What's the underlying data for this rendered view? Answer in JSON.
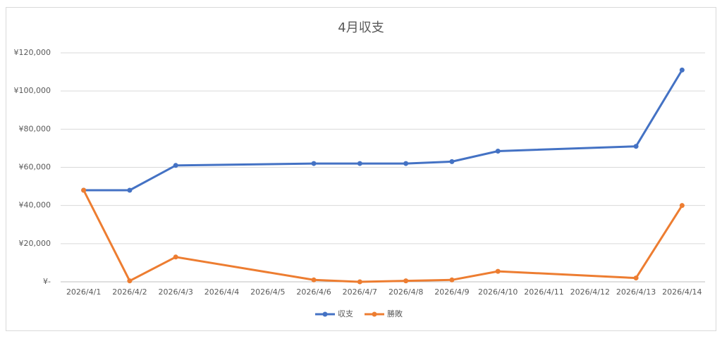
{
  "chart_data": {
    "type": "line",
    "title": "4月収支",
    "categories": [
      "2026/4/1",
      "2026/4/2",
      "2026/4/3",
      "2026/4/4",
      "2026/4/5",
      "2026/4/6",
      "2026/4/7",
      "2026/4/8",
      "2026/4/9",
      "2026/4/10",
      "2026/4/11",
      "2026/4/12",
      "2026/4/13",
      "2026/4/14"
    ],
    "series": [
      {
        "name": "収支",
        "color": "#4472c4",
        "values": [
          48000,
          48000,
          61000,
          null,
          null,
          62000,
          62000,
          62000,
          63000,
          68500,
          null,
          null,
          71000,
          111000
        ]
      },
      {
        "name": "勝敗",
        "color": "#ed7d31",
        "values": [
          48000,
          500,
          13000,
          null,
          null,
          1000,
          0,
          500,
          1000,
          5500,
          null,
          null,
          2000,
          40000
        ]
      }
    ],
    "ylim": [
      0,
      120000
    ],
    "yticks": [
      {
        "value": 0,
        "label": "¥-"
      },
      {
        "value": 20000,
        "label": "¥20,000"
      },
      {
        "value": 40000,
        "label": "¥40,000"
      },
      {
        "value": 60000,
        "label": "¥60,000"
      },
      {
        "value": 80000,
        "label": "¥80,000"
      },
      {
        "value": 100000,
        "label": "¥100,000"
      },
      {
        "value": 120000,
        "label": "¥120,000"
      }
    ],
    "grid": true,
    "connect_gaps": true,
    "legend": "bottom"
  }
}
